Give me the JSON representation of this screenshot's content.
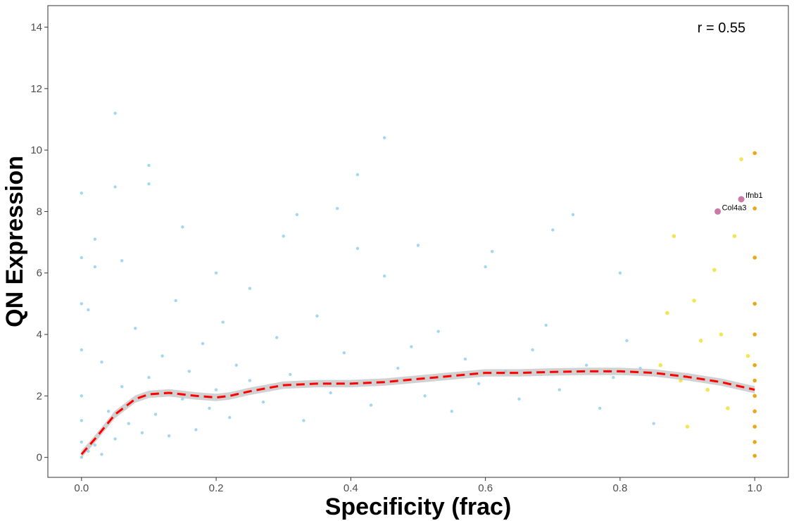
{
  "chart_data": {
    "type": "scatter",
    "title": "",
    "xlabel": "Specificity (frac)",
    "ylabel": "QN Expression",
    "xlim": [
      -0.05,
      1.05
    ],
    "ylim": [
      -0.65,
      14.7
    ],
    "x_ticks": [
      0.0,
      0.2,
      0.4,
      0.6,
      0.8,
      1.0
    ],
    "x_tick_labels": [
      "0.0",
      "0.2",
      "0.4",
      "0.6",
      "0.8",
      "1.0"
    ],
    "y_ticks": [
      0,
      2,
      4,
      6,
      8,
      10,
      12,
      14
    ],
    "y_tick_labels": [
      "0",
      "2",
      "4",
      "6",
      "8",
      "10",
      "12",
      "14"
    ],
    "grid": false,
    "annotation": "r = 0.55",
    "colors": {
      "low_specificity": "#56B4E9",
      "high_specificity": "#F0E442",
      "max_specificity": "#E69F00",
      "highlight": "#CC79A7",
      "trend_line": "#FF0000",
      "confidence_band": "#BEBEBE"
    },
    "series": [
      {
        "x": [
          0.0,
          0.0,
          0.0,
          0.0,
          0.0,
          0.0,
          0.0,
          0.0,
          0.01,
          0.01,
          0.02,
          0.02,
          0.03,
          0.03,
          0.04,
          0.05,
          0.05,
          0.06,
          0.07,
          0.08,
          0.09,
          0.1,
          0.1,
          0.11,
          0.12,
          0.13,
          0.14,
          0.15,
          0.16,
          0.17,
          0.18,
          0.19,
          0.2,
          0.21,
          0.22,
          0.23,
          0.25,
          0.27,
          0.29,
          0.31,
          0.33,
          0.35,
          0.37,
          0.39,
          0.41,
          0.43,
          0.45,
          0.47,
          0.49,
          0.51,
          0.53,
          0.55,
          0.57,
          0.59,
          0.61,
          0.63,
          0.65,
          0.67,
          0.69,
          0.71,
          0.73,
          0.75,
          0.77,
          0.79,
          0.81,
          0.83,
          0.85,
          0.05,
          0.1,
          0.32,
          0.38,
          0.41,
          0.45,
          0.02,
          0.06,
          0.15,
          0.2,
          0.25,
          0.3,
          0.5,
          0.6,
          0.7,
          0.8
        ],
        "y": [
          0.0,
          0.5,
          1.2,
          2.0,
          3.5,
          5.0,
          6.5,
          8.6,
          0.2,
          4.8,
          0.4,
          6.2,
          0.1,
          3.1,
          1.5,
          11.2,
          0.6,
          2.3,
          1.1,
          4.2,
          0.8,
          9.5,
          2.6,
          1.4,
          3.3,
          0.7,
          5.1,
          1.9,
          2.8,
          0.9,
          3.7,
          1.6,
          2.2,
          4.4,
          1.3,
          3.0,
          2.5,
          1.8,
          3.9,
          2.7,
          1.2,
          4.6,
          2.1,
          3.4,
          9.2,
          1.7,
          10.4,
          2.9,
          3.6,
          2.0,
          4.1,
          1.5,
          3.2,
          2.4,
          6.7,
          2.8,
          1.9,
          3.5,
          4.3,
          2.2,
          7.9,
          3.0,
          1.6,
          2.6,
          3.8,
          2.9,
          1.1,
          8.8,
          8.9,
          7.9,
          8.1,
          6.8,
          5.9,
          7.1,
          6.4,
          7.5,
          6.0,
          5.5,
          7.2,
          6.9,
          6.2,
          7.4,
          6.0
        ],
        "color": "#56B4E9"
      },
      {
        "x": [
          0.86,
          0.87,
          0.88,
          0.89,
          0.9,
          0.91,
          0.92,
          0.93,
          0.94,
          0.95,
          0.96,
          0.97,
          0.98,
          0.99
        ],
        "y": [
          3.0,
          4.7,
          7.2,
          2.5,
          1.0,
          5.1,
          3.8,
          2.2,
          6.1,
          4.0,
          1.6,
          7.2,
          9.7,
          3.3
        ],
        "color": "#F0E442"
      },
      {
        "x": [
          1.0,
          1.0,
          1.0,
          1.0,
          1.0,
          1.0,
          1.0,
          1.0,
          1.0,
          1.0,
          1.0,
          1.0
        ],
        "y": [
          0.05,
          0.5,
          1.0,
          1.5,
          2.0,
          2.5,
          3.0,
          4.0,
          5.0,
          6.5,
          8.1,
          9.9
        ],
        "color": "#E69F00"
      }
    ],
    "highlighted_points": [
      {
        "label": "Ifnb1",
        "x": 0.98,
        "y": 8.4
      },
      {
        "label": "Col4a3",
        "x": 0.945,
        "y": 8.0
      }
    ],
    "trend_line": {
      "style": "dashed",
      "x": [
        0.0,
        0.02,
        0.05,
        0.08,
        0.1,
        0.13,
        0.17,
        0.2,
        0.22,
        0.25,
        0.3,
        0.35,
        0.4,
        0.45,
        0.5,
        0.55,
        0.6,
        0.65,
        0.7,
        0.75,
        0.8,
        0.85,
        0.9,
        0.95,
        1.0
      ],
      "y": [
        0.1,
        0.6,
        1.4,
        1.9,
        2.05,
        2.1,
        2.0,
        1.95,
        2.0,
        2.15,
        2.35,
        2.4,
        2.4,
        2.45,
        2.55,
        2.65,
        2.75,
        2.75,
        2.78,
        2.8,
        2.8,
        2.75,
        2.62,
        2.45,
        2.2
      ]
    }
  }
}
